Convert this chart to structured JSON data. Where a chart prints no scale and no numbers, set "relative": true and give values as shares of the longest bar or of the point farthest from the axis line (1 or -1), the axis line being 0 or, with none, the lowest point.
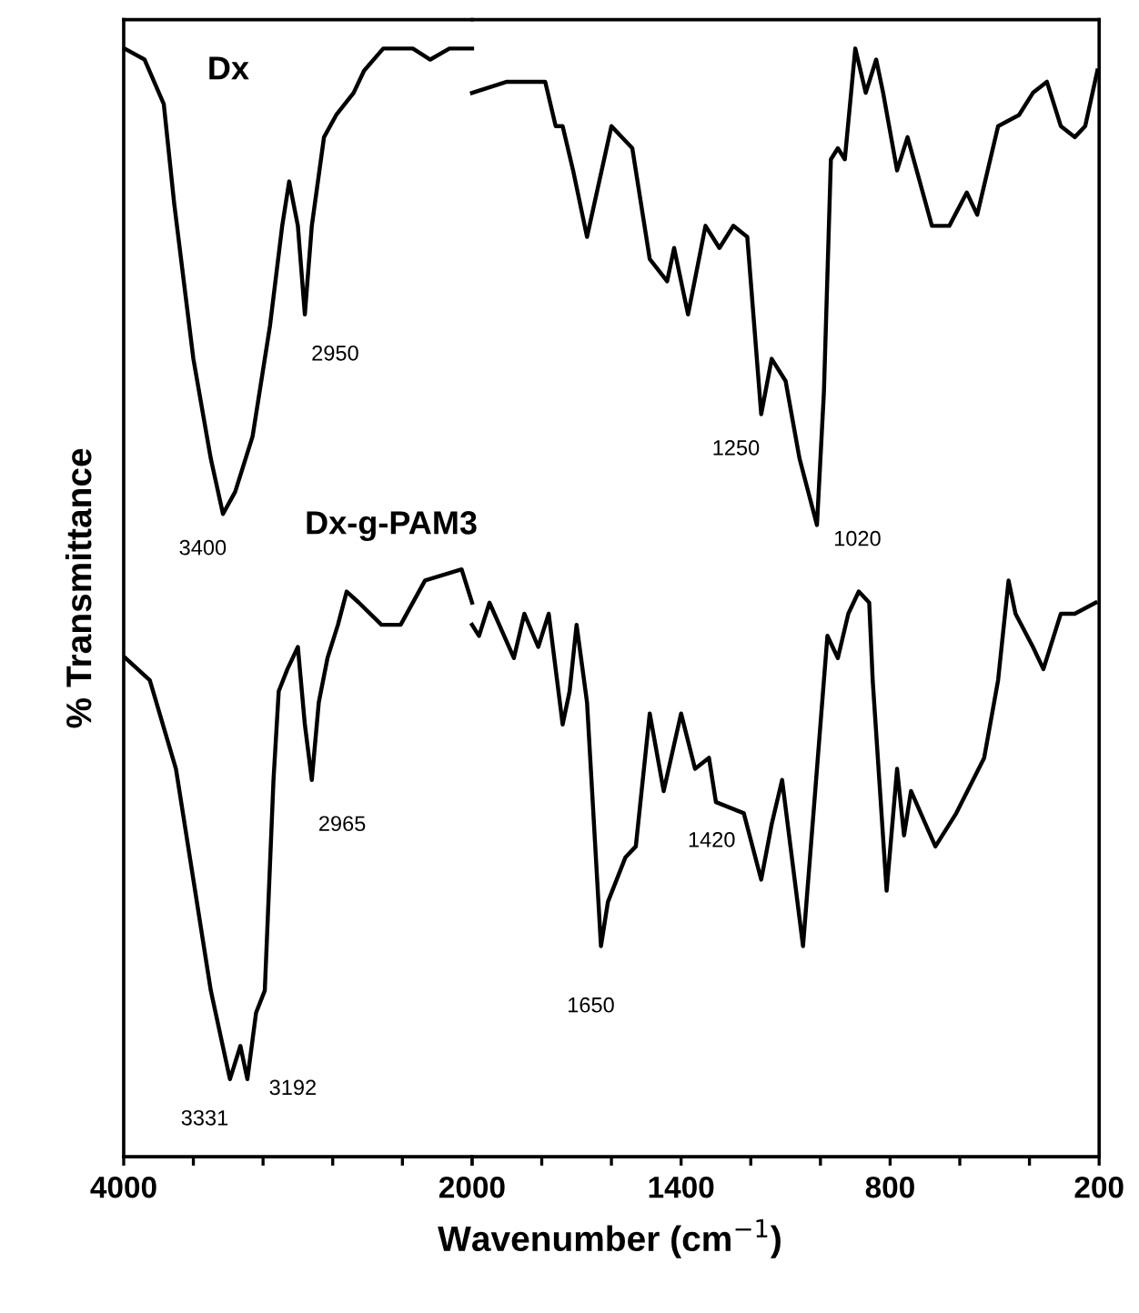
{
  "chart_data": [
    {
      "type": "line",
      "ylabel": "% Transmittance",
      "relative": true,
      "legend": false,
      "grid": false,
      "tick_labels": "x",
      "marker": "none",
      "line_style": "solid",
      "xlim": [
        4000,
        2000
      ],
      "xticks": [
        4000,
        {
          "value": 3600,
          "label": null
        },
        {
          "value": 3200,
          "label": null
        },
        {
          "value": 2800,
          "label": null
        },
        {
          "value": 2400,
          "label": null
        },
        2000
      ],
      "series": [
        {
          "name": "Dx",
          "color": "#000000",
          "x": [
            3995,
            3880,
            3770,
            3710,
            3600,
            3500,
            3430,
            3360,
            3260,
            3160,
            3090,
            3050,
            3000,
            2960,
            2920,
            2850,
            2780,
            2680,
            2620,
            2510,
            2410,
            2340,
            2240,
            2130,
            2000
          ],
          "values": [
            1.0,
            0.99,
            0.95,
            0.86,
            0.72,
            0.63,
            0.58,
            0.6,
            0.65,
            0.75,
            0.84,
            0.88,
            0.84,
            0.76,
            0.84,
            0.92,
            0.94,
            0.96,
            0.98,
            1.0,
            1.0,
            1.0,
            0.99,
            1.0,
            1.0
          ]
        },
        {
          "name": "Dx-g-PAM3",
          "color": "#000000",
          "x": [
            3990,
            3850,
            3700,
            3600,
            3500,
            3390,
            3330,
            3290,
            3240,
            3190,
            3140,
            3110,
            3060,
            3000,
            2960,
            2920,
            2880,
            2830,
            2770,
            2720,
            2650,
            2520,
            2410,
            2270,
            2060,
            2000
          ],
          "values": [
            0.45,
            0.43,
            0.35,
            0.25,
            0.15,
            0.07,
            0.1,
            0.07,
            0.13,
            0.15,
            0.34,
            0.42,
            0.44,
            0.46,
            0.39,
            0.34,
            0.41,
            0.45,
            0.48,
            0.51,
            0.5,
            0.48,
            0.48,
            0.52,
            0.53,
            0.5
          ]
        }
      ],
      "annotations": [
        {
          "text": "3400",
          "x": 3430,
          "y": 0.58
        },
        {
          "text": "2950",
          "x": 2960,
          "y": 0.76
        },
        {
          "text": "3331",
          "x": 3390,
          "y": 0.07
        },
        {
          "text": "3192",
          "x": 3290,
          "y": 0.07
        },
        {
          "text": "2965",
          "x": 2920,
          "y": 0.34
        }
      ]
    },
    {
      "type": "line",
      "xlabel": "Wavenumber (cm$^{−1}$)",
      "relative": true,
      "legend": false,
      "grid": false,
      "tick_labels": "x",
      "marker": "none",
      "line_style": "solid",
      "xlim": [
        2000,
        200
      ],
      "xticks": [
        {
          "value": 2000,
          "label": null
        },
        {
          "value": 1800,
          "label": null
        },
        {
          "value": 1600,
          "label": null
        },
        1400,
        {
          "value": 1200,
          "label": null
        },
        {
          "value": 1000,
          "label": null
        },
        800,
        {
          "value": 600,
          "label": null
        },
        {
          "value": 400,
          "label": null
        },
        200
      ],
      "series": [
        {
          "color": "#000000",
          "x": [
            2000,
            1900,
            1790,
            1760,
            1740,
            1710,
            1670,
            1600,
            1540,
            1490,
            1440,
            1420,
            1380,
            1330,
            1290,
            1250,
            1210,
            1170,
            1140,
            1100,
            1060,
            1010,
            990,
            970,
            950,
            930,
            900,
            870,
            840,
            820,
            780,
            750,
            680,
            630,
            580,
            550,
            490,
            430,
            390,
            350,
            310,
            270,
            240,
            205
          ],
          "values": [
            0.96,
            0.97,
            0.97,
            0.93,
            0.93,
            0.89,
            0.83,
            0.93,
            0.91,
            0.81,
            0.79,
            0.82,
            0.76,
            0.84,
            0.82,
            0.84,
            0.83,
            0.67,
            0.72,
            0.7,
            0.63,
            0.57,
            0.69,
            0.9,
            0.91,
            0.9,
            1.0,
            0.96,
            0.99,
            0.96,
            0.89,
            0.92,
            0.84,
            0.84,
            0.87,
            0.85,
            0.93,
            0.94,
            0.96,
            0.97,
            0.93,
            0.92,
            0.93,
            0.98
          ]
        },
        {
          "color": "#000000",
          "x": [
            2000,
            1980,
            1950,
            1880,
            1850,
            1810,
            1780,
            1740,
            1720,
            1700,
            1670,
            1630,
            1610,
            1560,
            1530,
            1490,
            1450,
            1400,
            1360,
            1320,
            1300,
            1220,
            1170,
            1140,
            1110,
            1050,
            1000,
            980,
            950,
            920,
            890,
            860,
            850,
            810,
            780,
            760,
            740,
            670,
            610,
            530,
            490,
            460,
            440,
            390,
            360,
            310,
            270,
            210
          ],
          "values": [
            0.48,
            0.47,
            0.5,
            0.45,
            0.49,
            0.46,
            0.49,
            0.39,
            0.42,
            0.48,
            0.41,
            0.19,
            0.23,
            0.27,
            0.28,
            0.4,
            0.33,
            0.4,
            0.35,
            0.36,
            0.32,
            0.31,
            0.25,
            0.3,
            0.34,
            0.19,
            0.39,
            0.47,
            0.45,
            0.49,
            0.51,
            0.5,
            0.43,
            0.24,
            0.35,
            0.29,
            0.33,
            0.28,
            0.31,
            0.36,
            0.43,
            0.52,
            0.49,
            0.46,
            0.44,
            0.49,
            0.49,
            0.5
          ]
        }
      ],
      "annotations": [
        {
          "text": "1250",
          "x": 1170,
          "y": 0.67
        },
        {
          "text": "1020",
          "x": 1010,
          "y": 0.57
        },
        {
          "text": "1650",
          "x": 1630,
          "y": 0.19
        },
        {
          "text": "1420",
          "x": 1530,
          "y": 0.28
        }
      ]
    }
  ]
}
